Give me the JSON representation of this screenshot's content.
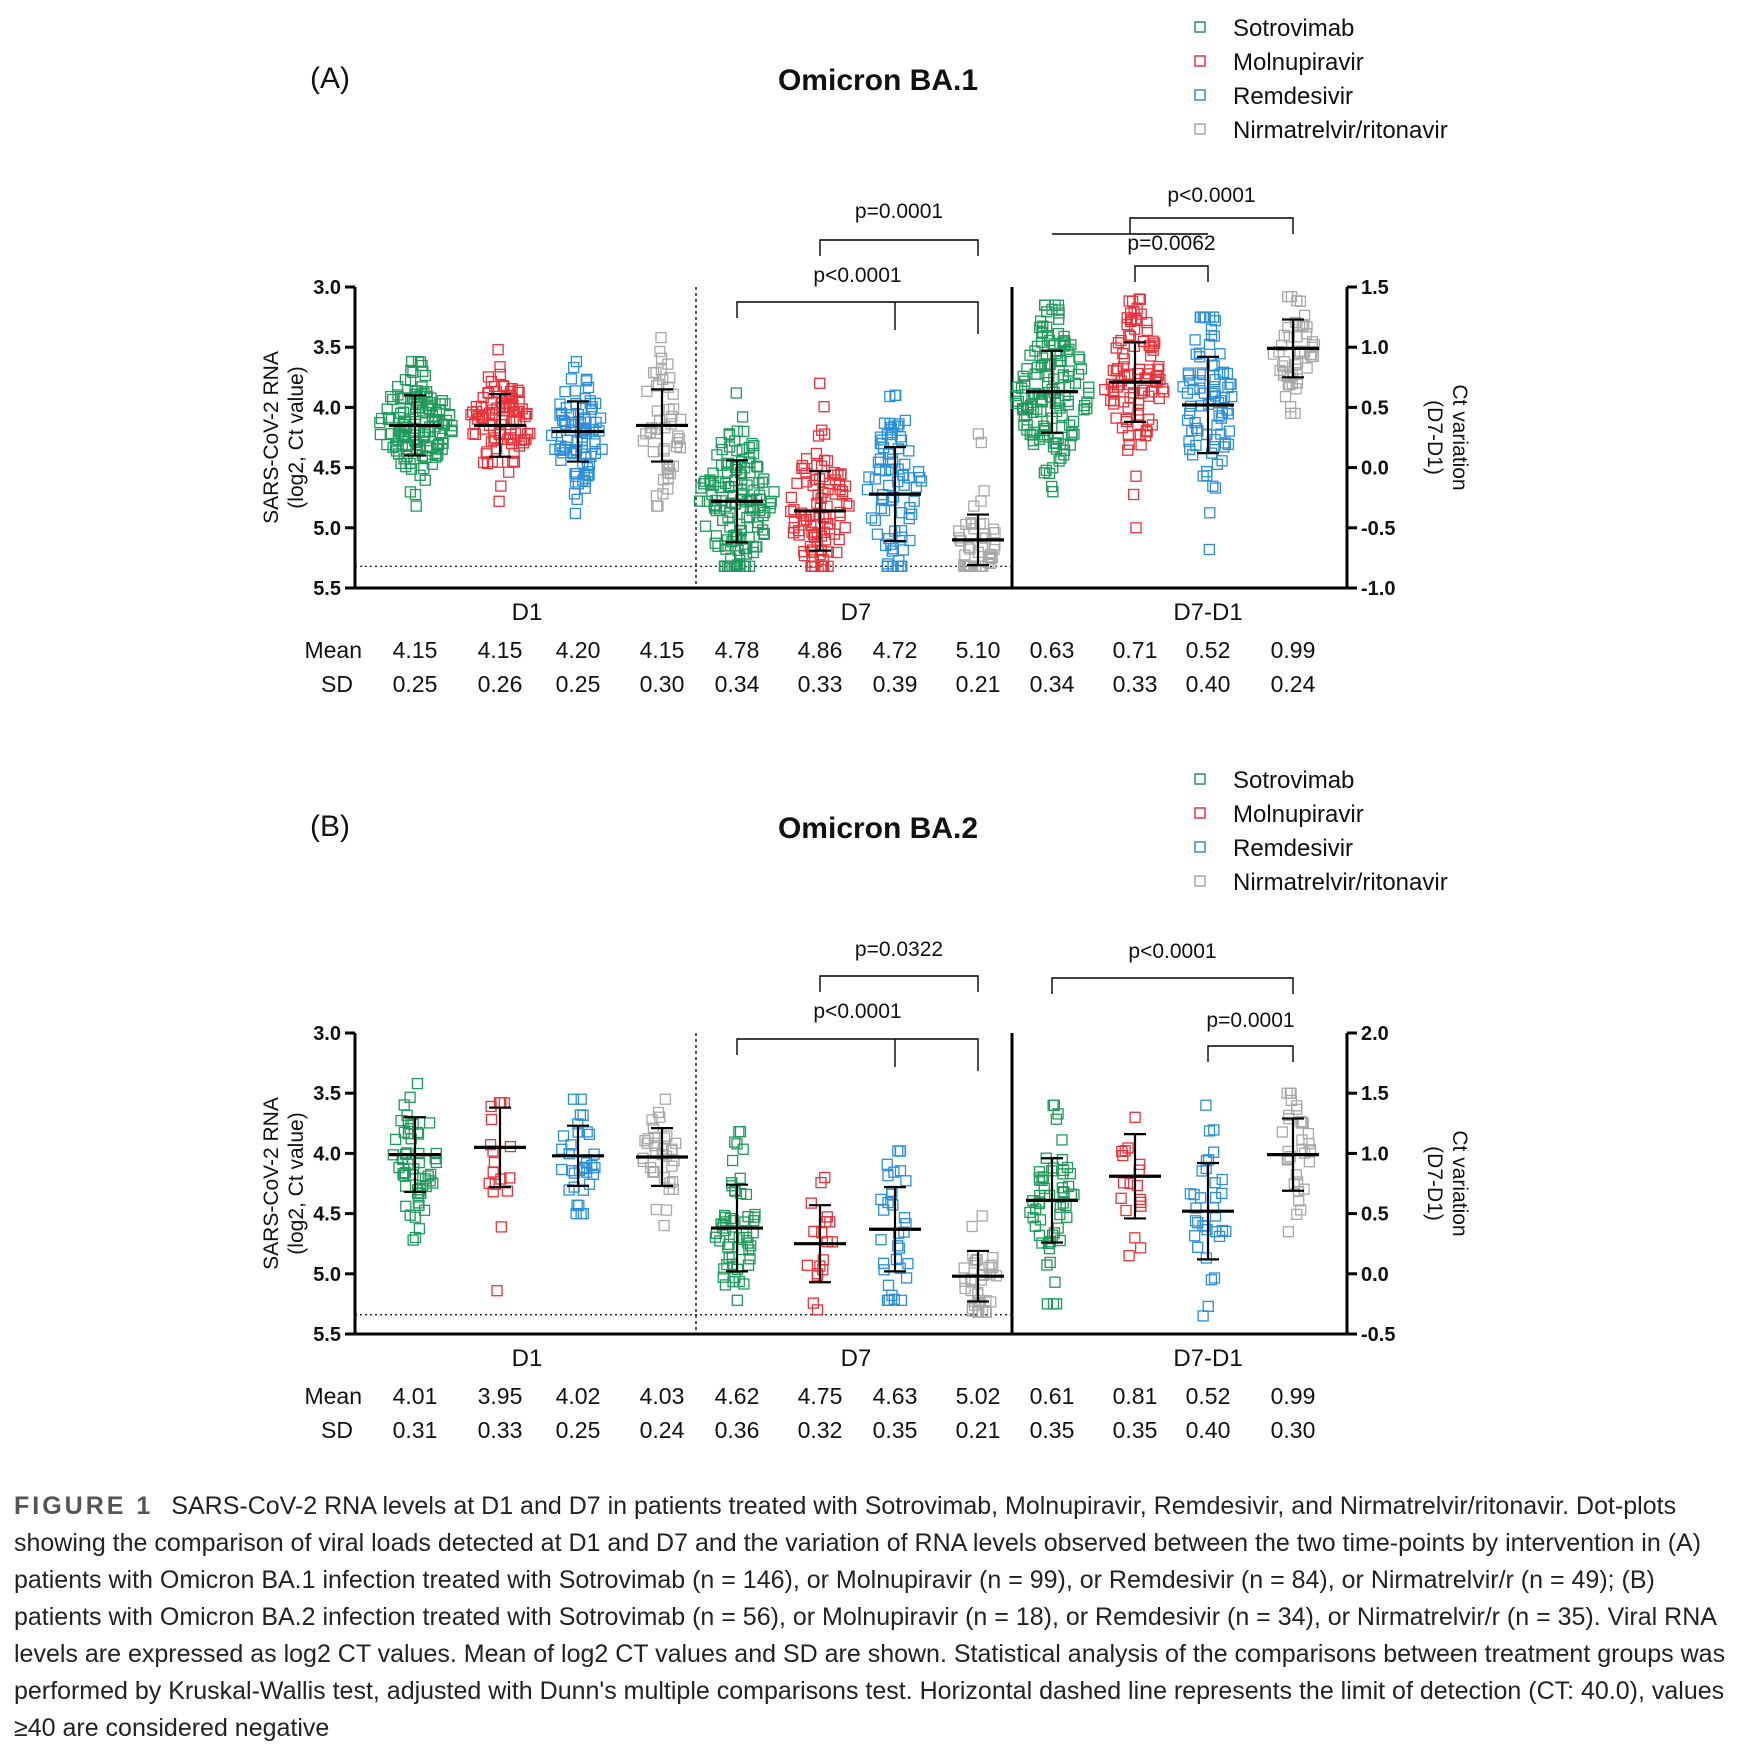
{
  "colors": {
    "Sotrovimab": "#1f9a5b",
    "Molnupiravir": "#e8333b",
    "Remdesivir": "#2a8fd8",
    "Nirmatrelvir/ritonavir": "#a8a8a8"
  },
  "chart_data": [
    {
      "type": "scatter",
      "panel_label": "(A)",
      "title": "Omicron BA.1",
      "legend": [
        "Sotrovimab",
        "Molnupiravir",
        "Remdesivir",
        "Nirmatrelvir/ritonavir"
      ],
      "legend_position": "top-right",
      "ylabel_left": [
        "SARS-CoV-2 RNA",
        "(log2, Ct value)"
      ],
      "ylabel_right": [
        "Ct variation",
        "(D7-D1)"
      ],
      "left_axis": {
        "ylim": [
          3.0,
          5.5
        ],
        "ticks": [
          "3.0",
          "3.5",
          "4.0",
          "4.5",
          "5.0",
          "5.5"
        ],
        "inverted": true
      },
      "right_axis": {
        "ylim": [
          -1.0,
          1.5
        ],
        "ticks": [
          "1.5",
          "1.0",
          "0.5",
          "0.0",
          "-0.5",
          "-1.0"
        ]
      },
      "detection_limit": 5.32,
      "groups": [
        {
          "label": "D1",
          "axis": "left",
          "series": [
            {
              "name": "Sotrovimab",
              "n": 146,
              "mean": 4.15,
              "sd": 0.25,
              "min": 3.62,
              "max": 4.82
            },
            {
              "name": "Molnupiravir",
              "n": 99,
              "mean": 4.15,
              "sd": 0.26,
              "min": 3.52,
              "max": 4.78
            },
            {
              "name": "Remdesivir",
              "n": 84,
              "mean": 4.2,
              "sd": 0.25,
              "min": 3.62,
              "max": 4.88
            },
            {
              "name": "Nirmatrelvir/ritonavir",
              "n": 49,
              "mean": 4.15,
              "sd": 0.3,
              "min": 3.42,
              "max": 4.82
            }
          ]
        },
        {
          "label": "D7",
          "axis": "left",
          "series": [
            {
              "name": "Sotrovimab",
              "n": 146,
              "mean": 4.78,
              "sd": 0.34,
              "min": 3.88,
              "max": 5.32
            },
            {
              "name": "Molnupiravir",
              "n": 99,
              "mean": 4.86,
              "sd": 0.33,
              "min": 3.8,
              "max": 5.32
            },
            {
              "name": "Remdesivir",
              "n": 84,
              "mean": 4.72,
              "sd": 0.39,
              "min": 3.9,
              "max": 5.32
            },
            {
              "name": "Nirmatrelvir/ritonavir",
              "n": 49,
              "mean": 5.1,
              "sd": 0.21,
              "min": 4.22,
              "max": 5.32
            }
          ]
        },
        {
          "label": "D7-D1",
          "axis": "right",
          "series": [
            {
              "name": "Sotrovimab",
              "n": 146,
              "mean": 0.63,
              "sd": 0.34,
              "min": -0.2,
              "max": 1.35
            },
            {
              "name": "Molnupiravir",
              "n": 99,
              "mean": 0.71,
              "sd": 0.33,
              "min": -0.5,
              "max": 1.4
            },
            {
              "name": "Remdesivir",
              "n": 84,
              "mean": 0.52,
              "sd": 0.4,
              "min": -0.68,
              "max": 1.25
            },
            {
              "name": "Nirmatrelvir/ritonavir",
              "n": 49,
              "mean": 0.99,
              "sd": 0.24,
              "min": 0.45,
              "max": 1.42
            }
          ]
        }
      ],
      "stats_labels": [
        "Mean",
        "SD"
      ],
      "stats": {
        "mean": [
          "4.15",
          "4.15",
          "4.20",
          "4.15",
          "4.78",
          "4.86",
          "4.72",
          "5.10",
          "0.63",
          "0.71",
          "0.52",
          "0.99"
        ],
        "sd": [
          "0.25",
          "0.26",
          "0.25",
          "0.30",
          "0.34",
          "0.33",
          "0.39",
          "0.21",
          "0.34",
          "0.33",
          "0.40",
          "0.24"
        ]
      },
      "comparisons": [
        {
          "group": "D7",
          "label": "p=0.0001",
          "from": "Molnupiravir",
          "to": "Nirmatrelvir/ritonavir"
        },
        {
          "group": "D7",
          "label": "p<0.0001",
          "from": "Sotrovimab",
          "to": "Nirmatrelvir/ritonavir",
          "via": "Remdesivir"
        },
        {
          "group": "D7-D1",
          "label": "p<0.0001",
          "from": "Sotrovimab",
          "to": "Nirmatrelvir/ritonavir",
          "combined_left": [
            "Sotrovimab",
            "Remdesivir"
          ]
        },
        {
          "group": "D7-D1",
          "label": "p=0.0062",
          "from": "Molnupiravir",
          "to": "Remdesivir"
        }
      ]
    },
    {
      "type": "scatter",
      "panel_label": "(B)",
      "title": "Omicron BA.2",
      "legend": [
        "Sotrovimab",
        "Molnupiravir",
        "Remdesivir",
        "Nirmatrelvir/ritonavir"
      ],
      "legend_position": "top-right",
      "ylabel_left": [
        "SARS-CoV-2 RNA",
        "(log2, Ct value)"
      ],
      "ylabel_right": [
        "Ct variation",
        "(D7-D1)"
      ],
      "left_axis": {
        "ylim": [
          3.0,
          5.5
        ],
        "ticks": [
          "3.0",
          "3.5",
          "4.0",
          "4.5",
          "5.0",
          "5.5"
        ],
        "inverted": true
      },
      "right_axis": {
        "ylim": [
          -0.5,
          2.0
        ],
        "ticks": [
          "2.0",
          "1.5",
          "1.0",
          "0.5",
          "0.0",
          "-0.5"
        ]
      },
      "detection_limit": 5.34,
      "groups": [
        {
          "label": "D1",
          "axis": "left",
          "series": [
            {
              "name": "Sotrovimab",
              "n": 56,
              "mean": 4.01,
              "sd": 0.31,
              "min": 3.42,
              "max": 4.72
            },
            {
              "name": "Molnupiravir",
              "n": 18,
              "mean": 3.95,
              "sd": 0.33,
              "min": 3.58,
              "max": 5.14
            },
            {
              "name": "Remdesivir",
              "n": 34,
              "mean": 4.02,
              "sd": 0.25,
              "min": 3.55,
              "max": 4.5
            },
            {
              "name": "Nirmatrelvir/ritonavir",
              "n": 35,
              "mean": 4.03,
              "sd": 0.24,
              "min": 3.55,
              "max": 4.6
            }
          ]
        },
        {
          "label": "D7",
          "axis": "left",
          "series": [
            {
              "name": "Sotrovimab",
              "n": 56,
              "mean": 4.62,
              "sd": 0.36,
              "min": 3.82,
              "max": 5.22
            },
            {
              "name": "Molnupiravir",
              "n": 18,
              "mean": 4.75,
              "sd": 0.32,
              "min": 4.2,
              "max": 5.3
            },
            {
              "name": "Remdesivir",
              "n": 34,
              "mean": 4.63,
              "sd": 0.35,
              "min": 3.98,
              "max": 5.22
            },
            {
              "name": "Nirmatrelvir/ritonavir",
              "n": 35,
              "mean": 5.02,
              "sd": 0.21,
              "min": 4.52,
              "max": 5.32
            }
          ]
        },
        {
          "label": "D7-D1",
          "axis": "right",
          "series": [
            {
              "name": "Sotrovimab",
              "n": 56,
              "mean": 0.61,
              "sd": 0.35,
              "min": -0.25,
              "max": 1.4
            },
            {
              "name": "Molnupiravir",
              "n": 18,
              "mean": 0.81,
              "sd": 0.35,
              "min": 0.15,
              "max": 1.3
            },
            {
              "name": "Remdesivir",
              "n": 34,
              "mean": 0.52,
              "sd": 0.4,
              "min": -0.35,
              "max": 1.4
            },
            {
              "name": "Nirmatrelvir/ritonavir",
              "n": 35,
              "mean": 0.99,
              "sd": 0.3,
              "min": 0.35,
              "max": 1.5
            }
          ]
        }
      ],
      "stats_labels": [
        "Mean",
        "SD"
      ],
      "stats": {
        "mean": [
          "4.01",
          "3.95",
          "4.02",
          "4.03",
          "4.62",
          "4.75",
          "4.63",
          "5.02",
          "0.61",
          "0.81",
          "0.52",
          "0.99"
        ],
        "sd": [
          "0.31",
          "0.33",
          "0.25",
          "0.24",
          "0.36",
          "0.32",
          "0.35",
          "0.21",
          "0.35",
          "0.35",
          "0.40",
          "0.30"
        ]
      },
      "comparisons": [
        {
          "group": "D7",
          "label": "p=0.0322",
          "from": "Molnupiravir",
          "to": "Nirmatrelvir/ritonavir"
        },
        {
          "group": "D7",
          "label": "p<0.0001",
          "from": "Sotrovimab",
          "to": "Nirmatrelvir/ritonavir",
          "via": "Remdesivir"
        },
        {
          "group": "D7-D1",
          "label": "p<0.0001",
          "from": "Sotrovimab",
          "to": "Nirmatrelvir/ritonavir"
        },
        {
          "group": "D7-D1",
          "label": "p=0.0001",
          "from": "Remdesivir",
          "to": "Nirmatrelvir/ritonavir"
        }
      ]
    }
  ],
  "caption": {
    "label": "FIGURE 1",
    "text": "SARS-CoV-2 RNA levels at D1 and D7 in patients treated with Sotrovimab, Molnupiravir, Remdesivir, and Nirmatrelvir/ritonavir. Dot-plots showing the comparison of viral loads detected at D1 and D7 and the variation of RNA levels observed between the two time-points by intervention in (A) patients with Omicron BA.1 infection treated with Sotrovimab (n = 146), or Molnupiravir (n = 99), or Remdesivir (n = 84), or Nirmatrelvir/r (n = 49); (B) patients with Omicron BA.2 infection treated with Sotrovimab (n = 56), or Molnupiravir (n = 18), or Remdesivir (n = 34), or Nirmatrelvir/r (n = 35). Viral RNA levels are expressed as log2 CT values. Mean of log2 CT values and SD are shown. Statistical analysis of the comparisons between treatment groups was performed by Kruskal-Wallis test, adjusted with Dunn's multiple comparisons test. Horizontal dashed line represents the limit of detection (CT: 40.0), values ≥40 are considered negative"
  }
}
